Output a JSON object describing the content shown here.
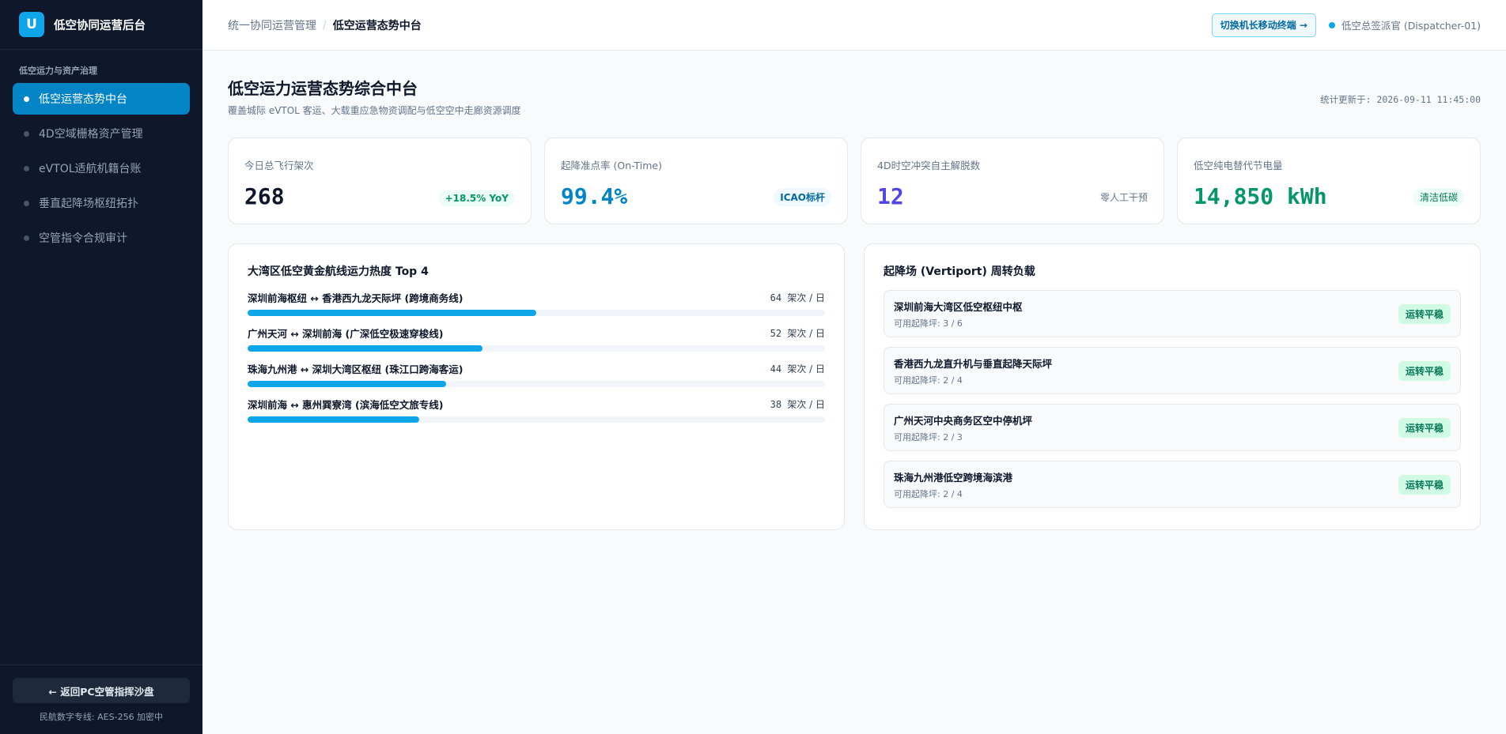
{
  "app": {
    "logo_letter": "U",
    "name": "低空协同运营后台"
  },
  "sidebar": {
    "section_label": "低空运力与资产治理",
    "items": [
      {
        "label": "低空运营态势中台",
        "active": true
      },
      {
        "label": "4D空域栅格资产管理",
        "active": false
      },
      {
        "label": "eVTOL适航机籍台账",
        "active": false
      },
      {
        "label": "垂直起降场枢纽拓扑",
        "active": false
      },
      {
        "label": "空管指令合规审计",
        "active": false
      }
    ],
    "back_button": "← 返回PC空管指挥沙盘",
    "footer_note": "民航数字专线: AES-256 加密中"
  },
  "topbar": {
    "breadcrumb_parent": "统一协同运营管理",
    "breadcrumb_sep": "/",
    "breadcrumb_current": "低空运营态势中台",
    "switch_button": "切换机长移动终端 →",
    "user": "低空总签派官 (Dispatcher-01)"
  },
  "page": {
    "title": "低空运力运营态势综合中台",
    "subtitle": "覆盖城际 eVTOL 客运、大载重应急物资调配与低空空中走廊资源调度",
    "updated": "统计更新于: 2026-09-11 11:45:00"
  },
  "kpis": [
    {
      "label": "今日总飞行架次",
      "value": "268",
      "tag": "+18.5% YoY",
      "color": "#0f172a"
    },
    {
      "label": "起降准点率 (On-Time)",
      "value": "99.4%",
      "tag": "ICAO标杆",
      "color": "#0284c7"
    },
    {
      "label": "4D时空冲突自主解脱数",
      "value": "12",
      "tag": "零人工干预",
      "color": "#4f46e5"
    },
    {
      "label": "低空纯电替代节电量",
      "value": "14,850 kWh",
      "tag": "清洁低碳",
      "color": "#059669"
    }
  ],
  "routes_panel": {
    "title": "大湾区低空黄金航线运力热度 Top 4",
    "unit": "架次 / 日",
    "routes": [
      {
        "name": "深圳前海枢纽 ↔ 香港西九龙天际坪 (跨境商务线)",
        "value": 64
      },
      {
        "name": "广州天河 ↔ 深圳前海 (广深低空极速穿梭线)",
        "value": 52
      },
      {
        "name": "珠海九州港 ↔ 深圳大湾区枢纽 (珠江口跨海客运)",
        "value": 44
      },
      {
        "name": "深圳前海 ↔ 惠州巽寮湾 (滨海低空文旅专线)",
        "value": 38
      }
    ],
    "bar_scale_max": 128
  },
  "vertiports_panel": {
    "title": "起降场 (Vertiport) 周转负载",
    "items": [
      {
        "name": "深圳前海大湾区低空枢纽中枢",
        "pads": "可用起降坪: 3 / 6",
        "status": "运转平稳"
      },
      {
        "name": "香港西九龙直升机与垂直起降天际坪",
        "pads": "可用起降坪: 2 / 4",
        "status": "运转平稳"
      },
      {
        "name": "广州天河中央商务区空中停机坪",
        "pads": "可用起降坪: 2 / 3",
        "status": "运转平稳"
      },
      {
        "name": "珠海九州港低空跨境海滨港",
        "pads": "可用起降坪: 2 / 4",
        "status": "运转平稳"
      }
    ]
  }
}
